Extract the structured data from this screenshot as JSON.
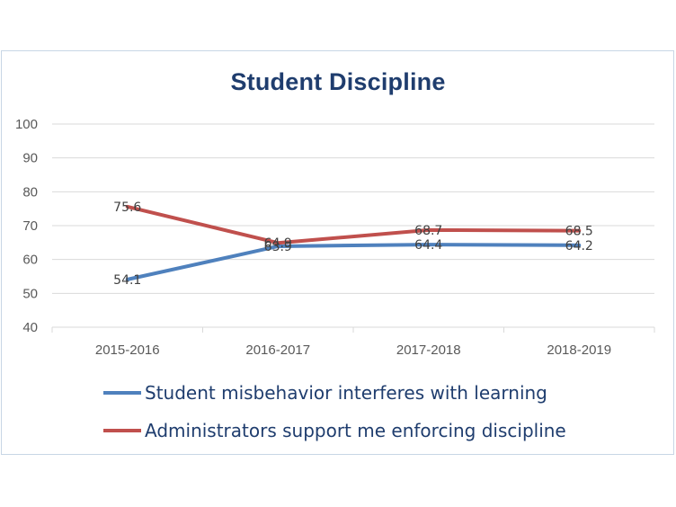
{
  "chart_data": {
    "type": "line",
    "title": "Student Discipline",
    "categories": [
      "2015-2016",
      "2016-2017",
      "2017-2018",
      "2018-2019"
    ],
    "ylim": [
      40,
      100
    ],
    "yticks": [
      40,
      50,
      60,
      70,
      80,
      90,
      100
    ],
    "grid": true,
    "legend_position": "bottom",
    "series": [
      {
        "name": "Student misbehavior interferes with learning",
        "color": "#4f81bd",
        "values": [
          54.1,
          63.9,
          64.4,
          64.2
        ],
        "labels": [
          "54.1",
          "63.9",
          "64.4",
          "64.2"
        ]
      },
      {
        "name": "Administrators  support me enforcing discipline",
        "color": "#c0504d",
        "values": [
          75.6,
          64.9,
          68.7,
          68.5
        ],
        "labels": [
          "75.6",
          "64.9",
          "68.7",
          "68.5"
        ]
      }
    ]
  }
}
